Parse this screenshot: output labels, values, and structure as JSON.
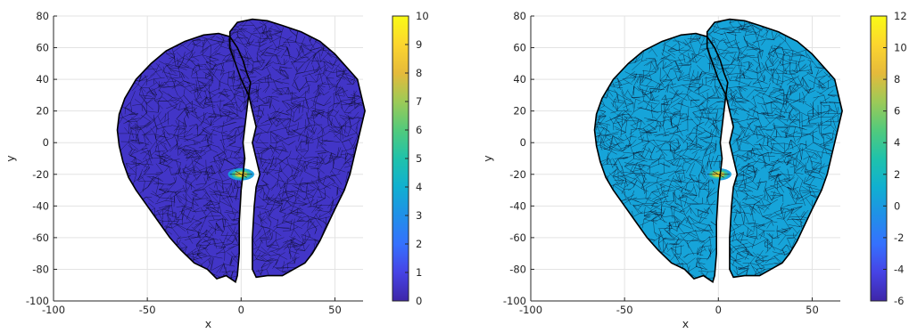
{
  "chart_data": [
    {
      "type": "surface",
      "view": "top",
      "xlabel": "x",
      "ylabel": "y",
      "xlim": [
        -100,
        65
      ],
      "ylim": [
        -100,
        80
      ],
      "xticks": [
        -100,
        -50,
        0,
        50
      ],
      "yticks": [
        -100,
        -80,
        -60,
        -40,
        -20,
        0,
        20,
        40,
        60,
        80
      ],
      "grid": true,
      "colormap": "parula",
      "colorbar": {
        "position": "right",
        "clim": [
          0,
          10
        ],
        "ticks": [
          0,
          1,
          2,
          3,
          4,
          5,
          6,
          7,
          8,
          9,
          10
        ]
      },
      "surface_base_value": 0.5,
      "hotspot": {
        "x": 0,
        "y": -20,
        "peak_value": 10
      },
      "surface_color": "#3b2a92"
    },
    {
      "type": "surface",
      "view": "top",
      "xlabel": "x",
      "ylabel": "y",
      "xlim": [
        -100,
        65
      ],
      "ylim": [
        -100,
        80
      ],
      "xticks": [
        -100,
        -50,
        0,
        50
      ],
      "yticks": [
        -100,
        -80,
        -60,
        -40,
        -20,
        0,
        20,
        40,
        60,
        80
      ],
      "grid": true,
      "colormap": "parula",
      "colorbar": {
        "position": "right",
        "clim": [
          -6,
          12
        ],
        "ticks": [
          -6,
          -4,
          -2,
          0,
          2,
          4,
          6,
          8,
          10,
          12
        ]
      },
      "surface_base_value": 0.5,
      "hotspot": {
        "x": 0,
        "y": -20,
        "peak_value": 12
      },
      "surface_color": "#2f8fe0"
    }
  ]
}
